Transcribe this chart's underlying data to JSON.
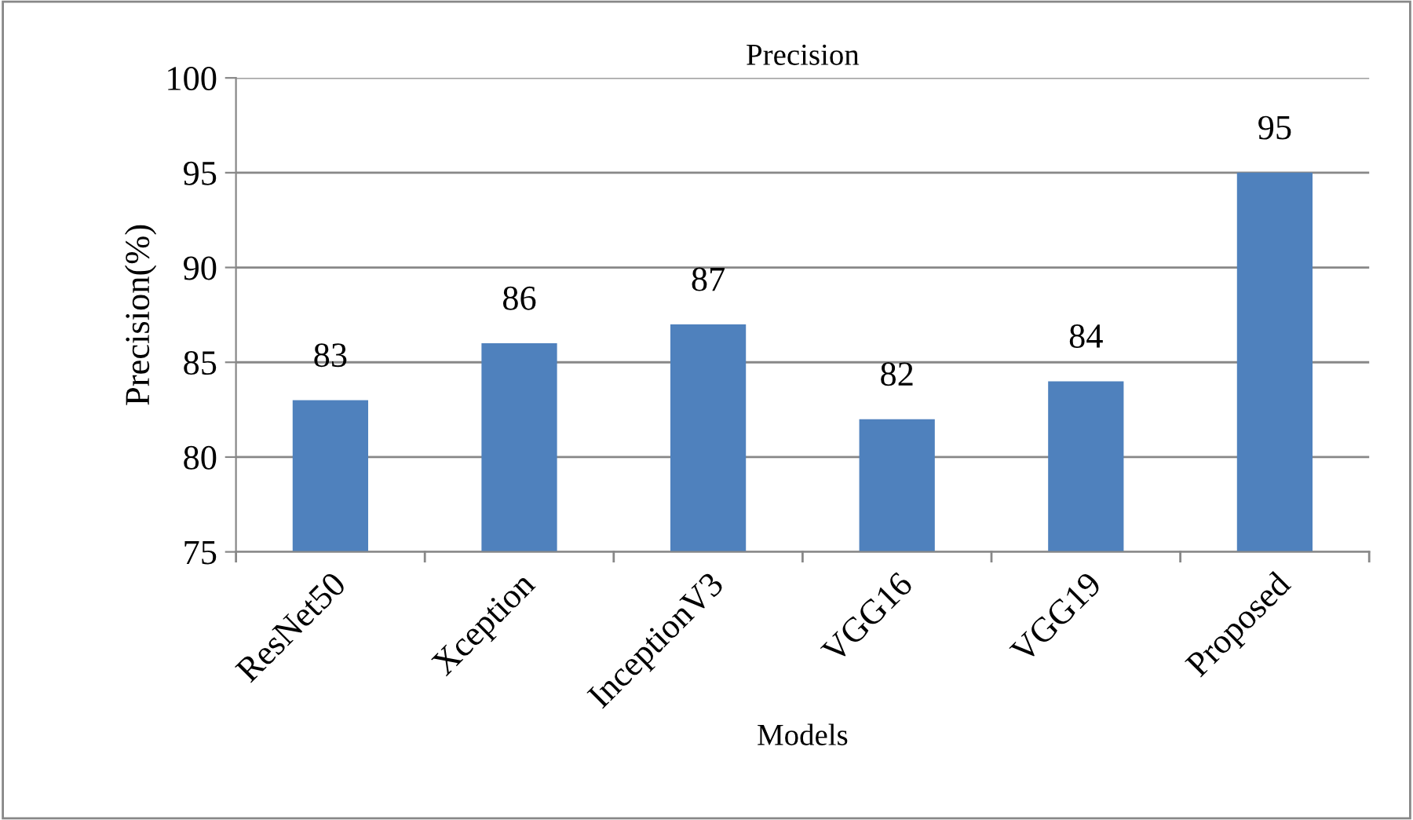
{
  "chart_data": {
    "type": "bar",
    "title": "Precision",
    "xlabel": "Models",
    "ylabel": "Precision(%)",
    "categories": [
      "ResNet50",
      "Xception",
      "InceptionV3",
      "VGG16",
      "VGG19",
      "Proposed"
    ],
    "values": [
      83,
      86,
      87,
      82,
      84,
      95
    ],
    "color": "#4f81bd",
    "ylim": [
      75,
      100
    ],
    "yticks": [
      75,
      80,
      85,
      90,
      95,
      100
    ],
    "grid": "y",
    "data_labels": true
  }
}
